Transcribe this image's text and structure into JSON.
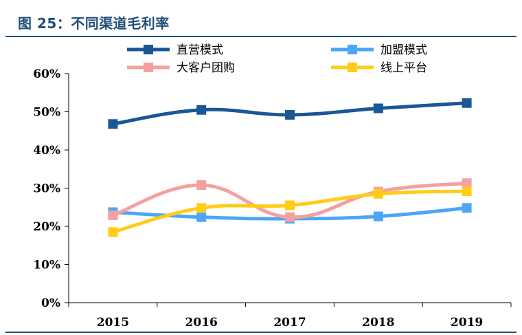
{
  "header": {
    "title": "图 25：不同渠道毛利率"
  },
  "chart_data": {
    "type": "line",
    "title": "",
    "xlabel": "",
    "ylabel": "",
    "categories": [
      "2015",
      "2016",
      "2017",
      "2018",
      "2019"
    ],
    "ylim": [
      0,
      0.6
    ],
    "yticks": [
      "0%",
      "10%",
      "20%",
      "30%",
      "40%",
      "50%",
      "60%"
    ],
    "ytick_values": [
      0,
      0.1,
      0.2,
      0.3,
      0.4,
      0.5,
      0.6
    ],
    "grid": false,
    "legend": "top",
    "series": [
      {
        "name": "直营模式",
        "color": "#1a5796",
        "values": [
          0.468,
          0.505,
          0.492,
          0.509,
          0.523
        ]
      },
      {
        "name": "加盟模式",
        "color": "#4da6f5",
        "values": [
          0.237,
          0.224,
          0.22,
          0.226,
          0.248
        ]
      },
      {
        "name": "大客户团购",
        "color": "#f4a0a0",
        "values": [
          0.229,
          0.308,
          0.224,
          0.291,
          0.313
        ]
      },
      {
        "name": "线上平台",
        "color": "#ffcc1a",
        "values": [
          0.185,
          0.248,
          0.255,
          0.285,
          0.292
        ]
      }
    ]
  }
}
